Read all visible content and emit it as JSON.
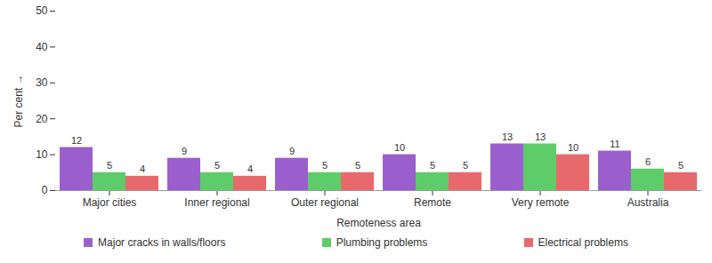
{
  "chart_data": {
    "type": "bar",
    "categories": [
      "Major cities",
      "Inner regional",
      "Outer regional",
      "Remote",
      "Very remote",
      "Australia"
    ],
    "series": [
      {
        "name": "Major cracks in walls/floors",
        "color": "#9a5fcd",
        "values": [
          12,
          9,
          9,
          10,
          13,
          11
        ]
      },
      {
        "name": "Plumbing problems",
        "color": "#5fcc6a",
        "values": [
          5,
          5,
          5,
          5,
          13,
          6
        ]
      },
      {
        "name": "Electrical problems",
        "color": "#e8696b",
        "values": [
          4,
          4,
          5,
          5,
          10,
          5
        ]
      }
    ],
    "x_label": "Remoteness area",
    "y_label": "Per cent",
    "ylim": [
      0,
      50
    ],
    "yticks": [
      0,
      10,
      20,
      30,
      40,
      50
    ],
    "grid": false,
    "data_labels": true,
    "legend": "bottom"
  }
}
